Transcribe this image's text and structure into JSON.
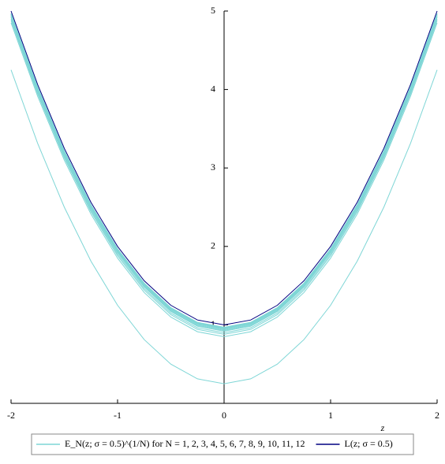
{
  "chart_data": {
    "type": "line",
    "x_label": "z",
    "x": [
      -2,
      -1.75,
      -1.5,
      -1.25,
      -1,
      -0.75,
      -0.5,
      -0.25,
      0,
      0.25,
      0.5,
      0.75,
      1,
      1.25,
      1.5,
      1.75,
      2
    ],
    "xlim": [
      -2,
      2
    ],
    "xticks": [
      -2,
      -1,
      0,
      1,
      2
    ],
    "ylim": [
      0,
      5
    ],
    "yticks": [
      1,
      2,
      3,
      4,
      5
    ],
    "legend": "bottom",
    "series": [
      {
        "name": "E_N(z; σ = 0.5)^(1/N) for N = 1, 2, 3, 4, 5, 6, 7, 8, 9, 10, 11, 12",
        "color": "#7fd6d6",
        "values": [
          4.25,
          3.3125,
          2.5,
          1.8125,
          1.25,
          0.8125,
          0.5,
          0.3125,
          0.25,
          0.3125,
          0.5,
          0.8125,
          1.25,
          1.8125,
          2.5,
          3.3125,
          4.25
        ]
      },
      {
        "color": "#7fd6d6",
        "values": [
          4.85,
          3.9125,
          3.1,
          2.4125,
          1.85,
          1.4125,
          1.1,
          0.9125,
          0.85,
          0.9125,
          1.1,
          1.4125,
          1.85,
          2.4125,
          3.1,
          3.9125,
          4.85
        ]
      },
      {
        "color": "#7fd6d6",
        "values": [
          4.88,
          3.9425,
          3.13,
          2.4425,
          1.88,
          1.4425,
          1.13,
          0.9425,
          0.88,
          0.9425,
          1.13,
          1.4425,
          1.88,
          2.4425,
          3.13,
          3.9425,
          4.88
        ]
      },
      {
        "color": "#7fd6d6",
        "values": [
          4.9,
          3.9625,
          3.15,
          2.4625,
          1.9,
          1.4625,
          1.15,
          0.9625,
          0.9,
          0.9625,
          1.15,
          1.4625,
          1.9,
          2.4625,
          3.15,
          3.9625,
          4.9
        ]
      },
      {
        "color": "#7fd6d6",
        "values": [
          4.92,
          3.9825,
          3.17,
          2.4825,
          1.92,
          1.4825,
          1.17,
          0.9825,
          0.92,
          0.9825,
          1.17,
          1.4825,
          1.92,
          2.4825,
          3.17,
          3.9825,
          4.92
        ]
      },
      {
        "color": "#7fd6d6",
        "values": [
          4.93,
          3.9925,
          3.18,
          2.4925,
          1.93,
          1.4925,
          1.18,
          0.9925,
          0.93,
          0.9925,
          1.18,
          1.4925,
          1.93,
          2.4925,
          3.18,
          3.9925,
          4.93
        ]
      },
      {
        "color": "#7fd6d6",
        "values": [
          4.94,
          4.0025,
          3.19,
          2.5025,
          1.94,
          1.5025,
          1.19,
          1.0025,
          0.94,
          1.0025,
          1.19,
          1.5025,
          1.94,
          2.5025,
          3.19,
          4.0025,
          4.94
        ]
      },
      {
        "color": "#7fd6d6",
        "values": [
          4.95,
          4.0125,
          3.2,
          2.5125,
          1.95,
          1.5125,
          1.2,
          1.0125,
          0.95,
          1.0125,
          1.2,
          1.5125,
          1.95,
          2.5125,
          3.2,
          4.0125,
          4.95
        ]
      },
      {
        "color": "#7fd6d6",
        "values": [
          4.955,
          4.0175,
          3.205,
          2.5175,
          1.955,
          1.5175,
          1.205,
          1.0175,
          0.955,
          1.0175,
          1.205,
          1.5175,
          1.955,
          2.5175,
          3.205,
          4.0175,
          4.955
        ]
      },
      {
        "color": "#7fd6d6",
        "values": [
          4.96,
          4.0225,
          3.21,
          2.5225,
          1.96,
          1.5225,
          1.21,
          1.0225,
          0.96,
          1.0225,
          1.21,
          1.5225,
          1.96,
          2.5225,
          3.21,
          4.0225,
          4.96
        ]
      },
      {
        "color": "#7fd6d6",
        "values": [
          4.965,
          4.0275,
          3.215,
          2.5275,
          1.965,
          1.5275,
          1.215,
          1.0275,
          0.965,
          1.0275,
          1.215,
          1.5275,
          1.965,
          2.5275,
          3.215,
          4.0275,
          4.965
        ]
      },
      {
        "color": "#7fd6d6",
        "values": [
          4.97,
          4.0325,
          3.22,
          2.5325,
          1.97,
          1.5325,
          1.22,
          1.0325,
          0.97,
          1.0325,
          1.22,
          1.5325,
          1.97,
          2.5325,
          3.22,
          4.0325,
          4.97
        ]
      },
      {
        "name": "L(z; σ = 0.5)",
        "color": "#000080",
        "values": [
          5,
          4.0625,
          3.25,
          2.5625,
          2,
          1.5625,
          1.25,
          1.0625,
          1,
          1.0625,
          1.25,
          1.5625,
          2,
          2.5625,
          3.25,
          4.0625,
          5
        ]
      }
    ]
  }
}
